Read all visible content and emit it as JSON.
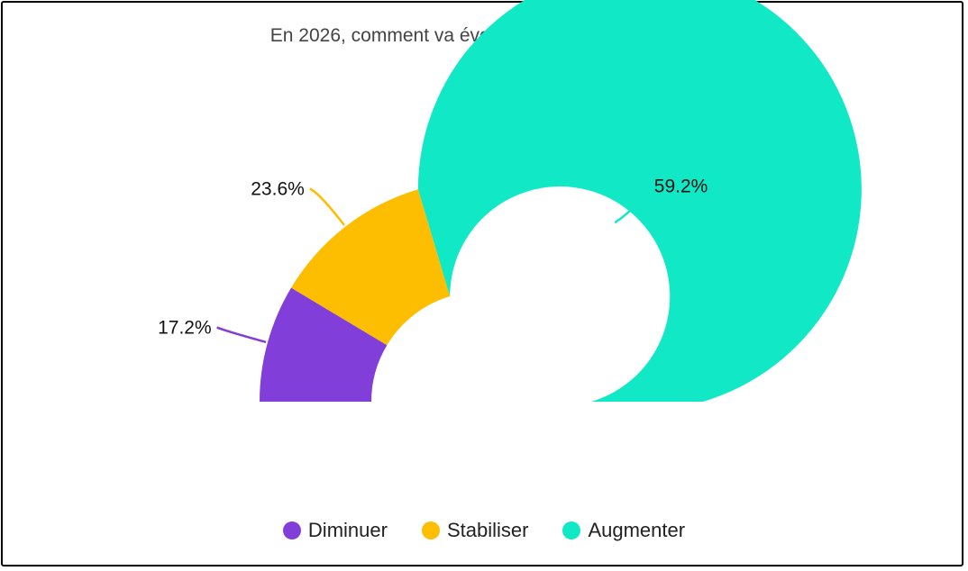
{
  "chart_data": {
    "type": "pie",
    "variant": "half-donut",
    "title": "En 2026, comment va évoluer votre usage de l'IA ?",
    "categories": [
      "Diminuer",
      "Stabiliser",
      "Augmenter"
    ],
    "values": [
      17.2,
      23.6,
      59.2
    ],
    "labels": [
      "17.2%",
      "23.6%",
      "59.2%"
    ],
    "colors": [
      "#823ed9",
      "#fdbd00",
      "#10e8c6"
    ],
    "legend_position": "bottom"
  }
}
